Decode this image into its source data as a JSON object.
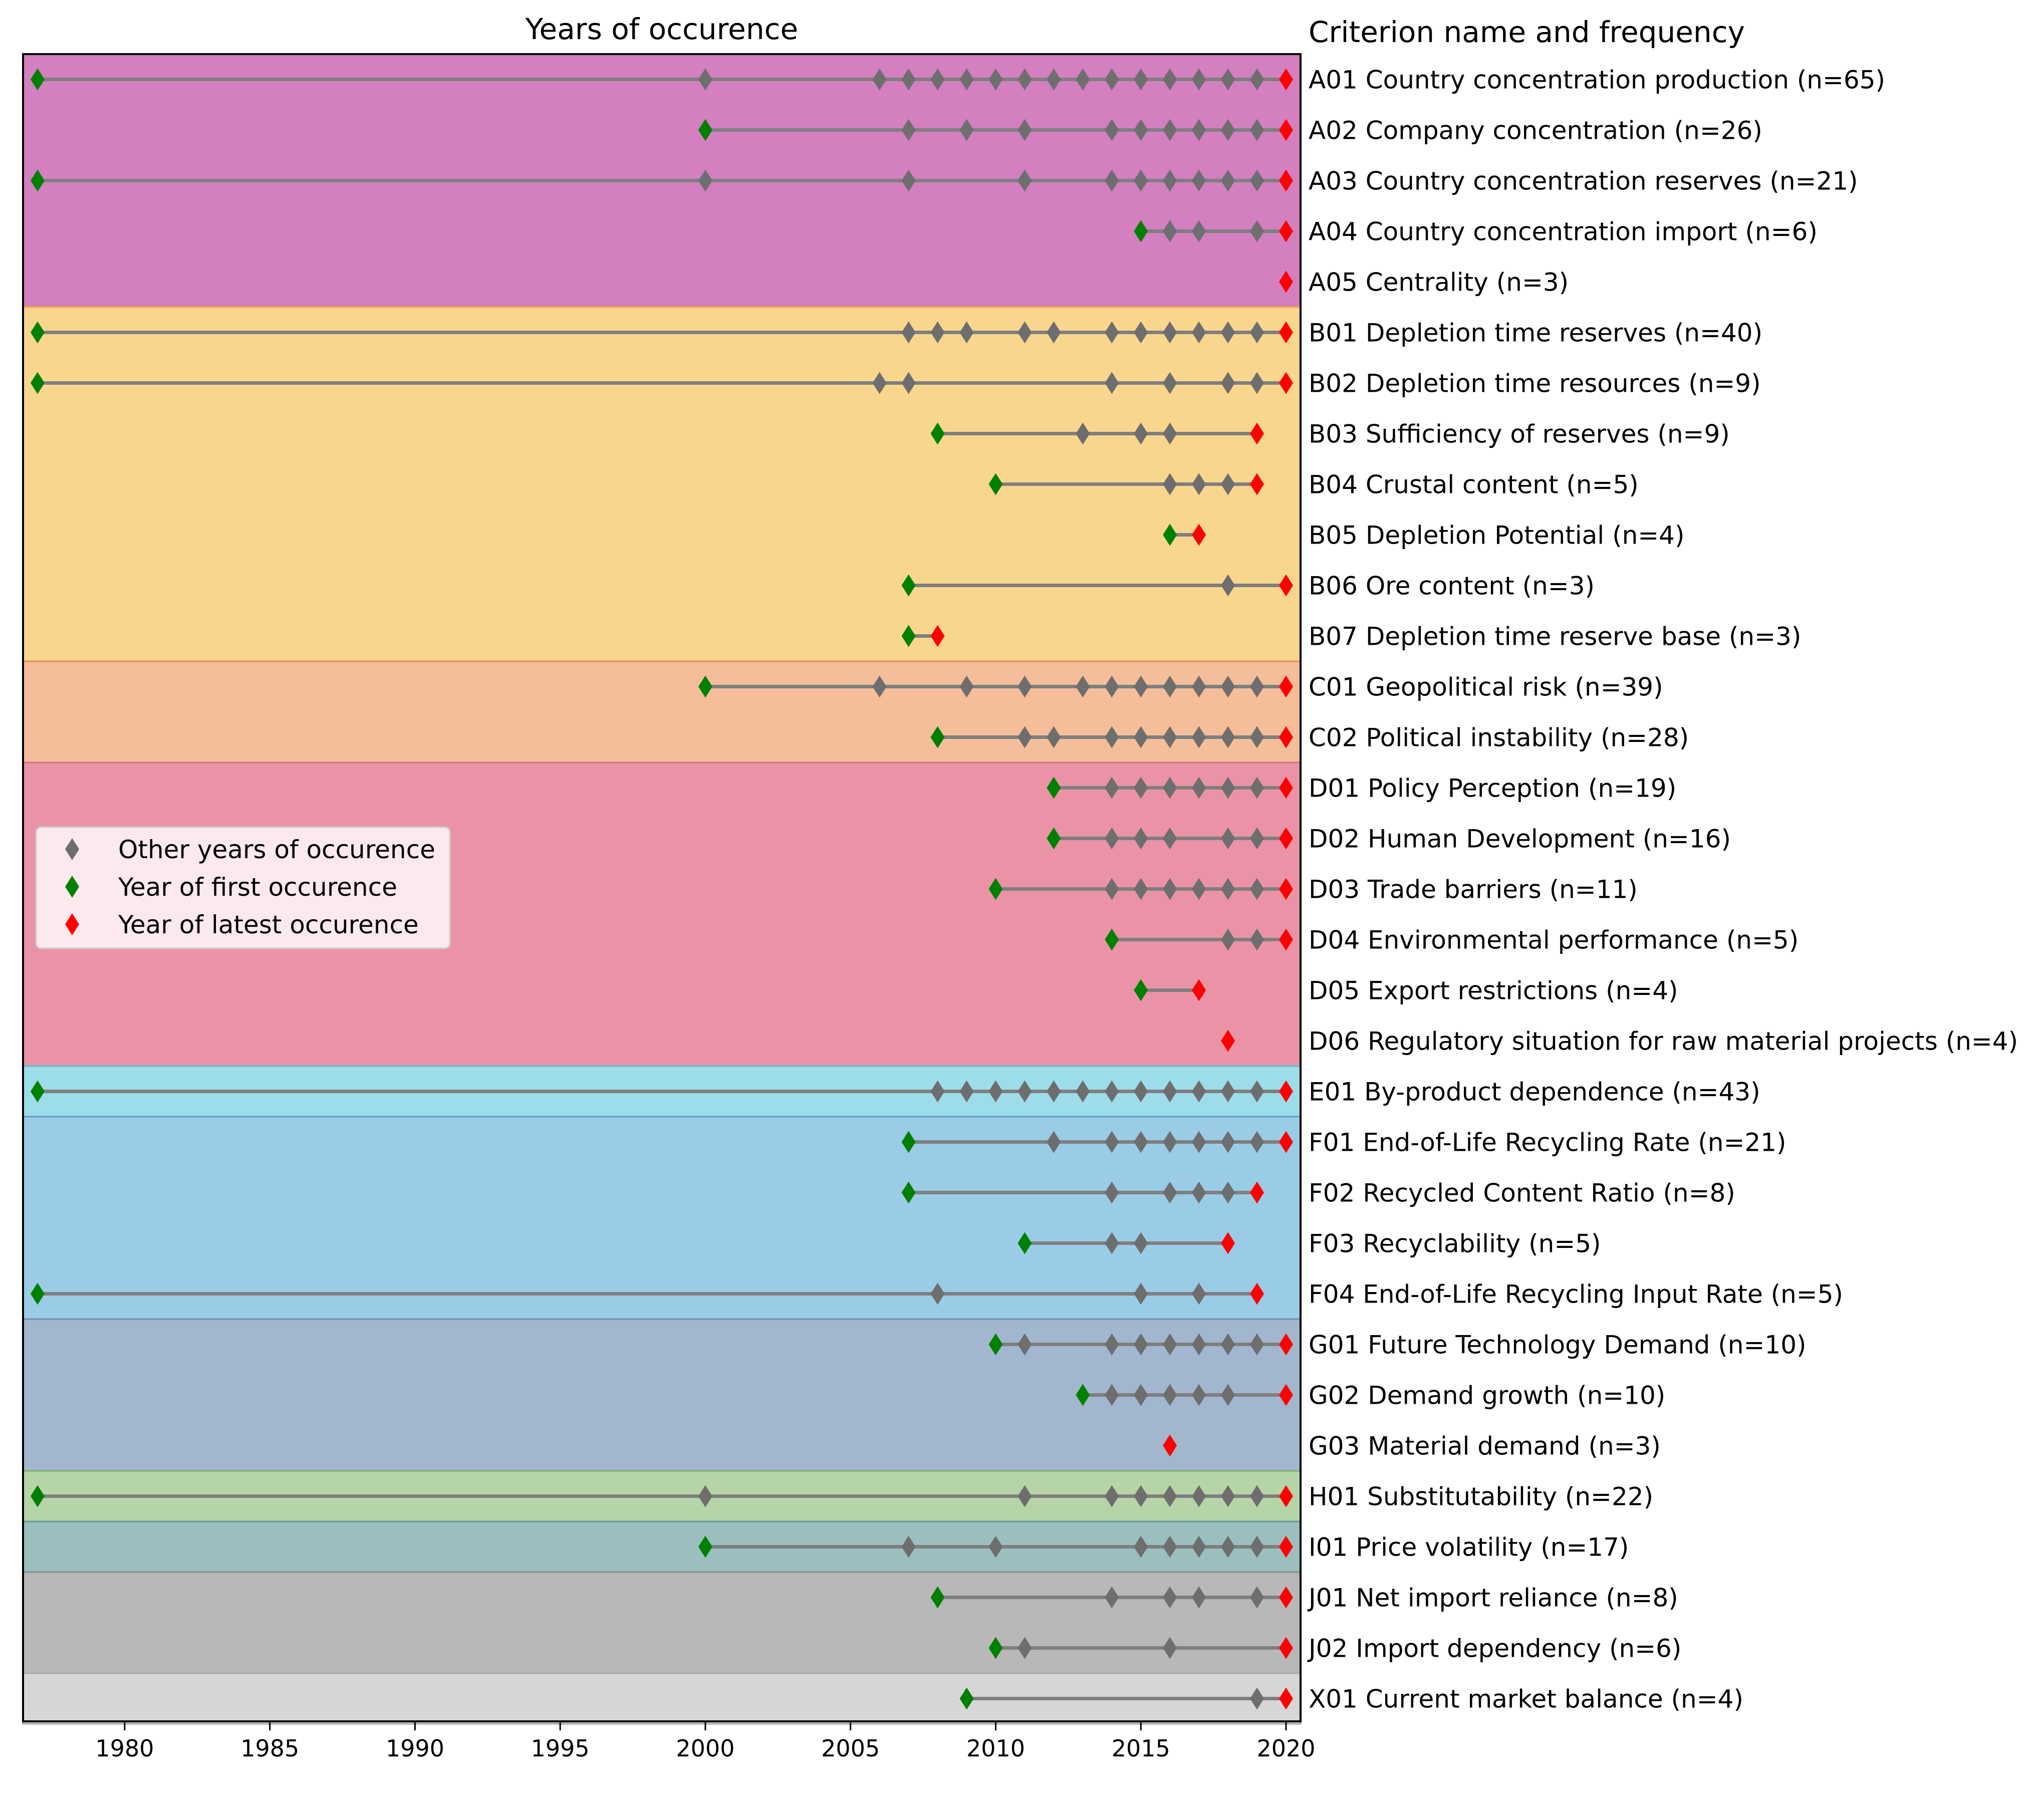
{
  "colors": {
    "first": "#008000",
    "latest": "#ff0000",
    "other": "#6e6e6e",
    "line": "#7f7f7f"
  },
  "chart_data": {
    "type": "scatter",
    "title": "Years of occurence",
    "right_title": "Criterion name and frequency",
    "xlim": [
      1976.5,
      2020.5
    ],
    "xticks": [
      1980,
      1985,
      1990,
      1995,
      2000,
      2005,
      2010,
      2015,
      2020
    ],
    "legend": {
      "placement": "center-left",
      "entries": [
        {
          "label": "Other years of occurence",
          "color": "#6e6e6e"
        },
        {
          "label": "Year of first occurence",
          "color": "#008000"
        },
        {
          "label": "Year of latest occurence",
          "color": "#ff0000"
        }
      ]
    },
    "groups": [
      {
        "id": "A",
        "fill": "#d37fc0",
        "edge": "#b55fa5",
        "rows": [
          {
            "label": "A01 Country concentration production (n=65)",
            "first": 1977,
            "latest": 2020,
            "others": [
              2000,
              2006,
              2007,
              2008,
              2009,
              2010,
              2011,
              2012,
              2013,
              2014,
              2015,
              2016,
              2017,
              2018,
              2019
            ]
          },
          {
            "label": "A02 Company concentration (n=26)",
            "first": 2000,
            "latest": 2020,
            "others": [
              2007,
              2009,
              2011,
              2014,
              2015,
              2016,
              2017,
              2018,
              2019
            ]
          },
          {
            "label": "A03 Country concentration reserves (n=21)",
            "first": 1977,
            "latest": 2020,
            "others": [
              2000,
              2007,
              2011,
              2014,
              2015,
              2016,
              2017,
              2018,
              2019
            ]
          },
          {
            "label": "A04 Country concentration import (n=6)",
            "first": 2015,
            "latest": 2020,
            "others": [
              2016,
              2017,
              2019
            ]
          },
          {
            "label": "A05 Centrality (n=3)",
            "first": null,
            "latest": 2020,
            "others": []
          }
        ]
      },
      {
        "id": "B",
        "fill": "#f9d68d",
        "edge": "#f0a94d",
        "rows": [
          {
            "label": "B01 Depletion time reserves (n=40)",
            "first": 1977,
            "latest": 2020,
            "others": [
              2007,
              2008,
              2009,
              2011,
              2012,
              2014,
              2015,
              2016,
              2017,
              2018,
              2019
            ]
          },
          {
            "label": "B02 Depletion time resources (n=9)",
            "first": 1977,
            "latest": 2020,
            "others": [
              2006,
              2007,
              2014,
              2016,
              2018,
              2019
            ]
          },
          {
            "label": "B03 Sufficiency of reserves (n=9)",
            "first": 2008,
            "latest": 2019,
            "others": [
              2013,
              2015,
              2016
            ]
          },
          {
            "label": "B04 Crustal content (n=5)",
            "first": 2010,
            "latest": 2019,
            "others": [
              2016,
              2017,
              2018
            ]
          },
          {
            "label": "B05 Depletion Potential (n=4)",
            "first": 2016,
            "latest": 2017,
            "others": []
          },
          {
            "label": "B06 Ore content (n=3)",
            "first": 2007,
            "latest": 2020,
            "others": [
              2018
            ]
          },
          {
            "label": "B07 Depletion time reserve base (n=3)",
            "first": 2007,
            "latest": 2008,
            "others": []
          }
        ]
      },
      {
        "id": "C",
        "fill": "#f4be9a",
        "edge": "#e88a55",
        "rows": [
          {
            "label": "C01 Geopolitical risk (n=39)",
            "first": 2000,
            "latest": 2020,
            "others": [
              2006,
              2009,
              2011,
              2013,
              2014,
              2015,
              2016,
              2017,
              2018,
              2019
            ]
          },
          {
            "label": "C02 Political instability (n=28)",
            "first": 2008,
            "latest": 2020,
            "others": [
              2011,
              2012,
              2014,
              2015,
              2016,
              2017,
              2018,
              2019
            ]
          }
        ]
      },
      {
        "id": "D",
        "fill": "#eb93a6",
        "edge": "#d96d85",
        "rows": [
          {
            "label": "D01 Policy Perception (n=19)",
            "first": 2012,
            "latest": 2020,
            "others": [
              2014,
              2015,
              2016,
              2017,
              2018,
              2019
            ]
          },
          {
            "label": "D02 Human Development (n=16)",
            "first": 2012,
            "latest": 2020,
            "others": [
              2014,
              2015,
              2016,
              2018,
              2019
            ]
          },
          {
            "label": "D03 Trade barriers (n=11)",
            "first": 2010,
            "latest": 2020,
            "others": [
              2014,
              2015,
              2016,
              2017,
              2018,
              2019
            ]
          },
          {
            "label": "D04 Environmental performance (n=5)",
            "first": 2014,
            "latest": 2020,
            "others": [
              2018,
              2019
            ]
          },
          {
            "label": "D05 Export restrictions (n=4)",
            "first": 2015,
            "latest": 2017,
            "others": []
          },
          {
            "label": "D06 Regulatory situation for raw material projects (n=4)",
            "first": null,
            "latest": 2018,
            "others": []
          }
        ]
      },
      {
        "id": "E",
        "fill": "#9ddde9",
        "edge": "#5fbcd3",
        "rows": [
          {
            "label": "E01 By-product dependence (n=43)",
            "first": 1977,
            "latest": 2020,
            "others": [
              2008,
              2009,
              2010,
              2011,
              2012,
              2013,
              2014,
              2015,
              2016,
              2017,
              2018,
              2019
            ]
          }
        ]
      },
      {
        "id": "F",
        "fill": "#9bcce6",
        "edge": "#5d9fc8",
        "rows": [
          {
            "label": "F01 End-of-Life Recycling Rate (n=21)",
            "first": 2007,
            "latest": 2020,
            "others": [
              2012,
              2014,
              2015,
              2016,
              2017,
              2018,
              2019
            ]
          },
          {
            "label": "F02 Recycled Content Ratio (n=8)",
            "first": 2007,
            "latest": 2019,
            "others": [
              2014,
              2016,
              2017,
              2018
            ]
          },
          {
            "label": "F03 Recyclability (n=5)",
            "first": 2011,
            "latest": 2018,
            "others": [
              2014,
              2015
            ]
          },
          {
            "label": "F04 End-of-Life Recycling Input Rate (n=5)",
            "first": 1977,
            "latest": 2019,
            "others": [
              2008,
              2015,
              2017
            ]
          }
        ]
      },
      {
        "id": "G",
        "fill": "#a2b7ce",
        "edge": "#6f8daf",
        "rows": [
          {
            "label": "G01 Future Technology Demand (n=10)",
            "first": 2010,
            "latest": 2020,
            "others": [
              2011,
              2014,
              2015,
              2016,
              2017,
              2018,
              2019
            ]
          },
          {
            "label": "G02 Demand growth (n=10)",
            "first": 2013,
            "latest": 2020,
            "others": [
              2014,
              2015,
              2016,
              2017,
              2018
            ]
          },
          {
            "label": "G03 Material demand (n=3)",
            "first": null,
            "latest": 2016,
            "others": []
          }
        ]
      },
      {
        "id": "H",
        "fill": "#b6d5a7",
        "edge": "#7fb06a",
        "rows": [
          {
            "label": "H01 Substitutability (n=22)",
            "first": 1977,
            "latest": 2020,
            "others": [
              2000,
              2011,
              2014,
              2015,
              2016,
              2017,
              2018,
              2019
            ]
          }
        ]
      },
      {
        "id": "I",
        "fill": "#9bbfbe",
        "edge": "#6a9896",
        "rows": [
          {
            "label": "I01 Price volatility (n=17)",
            "first": 2000,
            "latest": 2020,
            "others": [
              2007,
              2010,
              2015,
              2016,
              2017,
              2018,
              2019
            ]
          }
        ]
      },
      {
        "id": "J",
        "fill": "#b8b8b8",
        "edge": "#8f8f8f",
        "rows": [
          {
            "label": "J01 Net import reliance (n=8)",
            "first": 2008,
            "latest": 2020,
            "others": [
              2014,
              2016,
              2017,
              2019
            ]
          },
          {
            "label": "J02 Import dependency (n=6)",
            "first": 2010,
            "latest": 2020,
            "others": [
              2011,
              2016
            ]
          }
        ]
      },
      {
        "id": "X",
        "fill": "#d6d6d6",
        "edge": "#aaaaaa",
        "rows": [
          {
            "label": "X01 Current market balance (n=4)",
            "first": 2009,
            "latest": 2020,
            "others": [
              2019
            ]
          }
        ]
      }
    ]
  }
}
